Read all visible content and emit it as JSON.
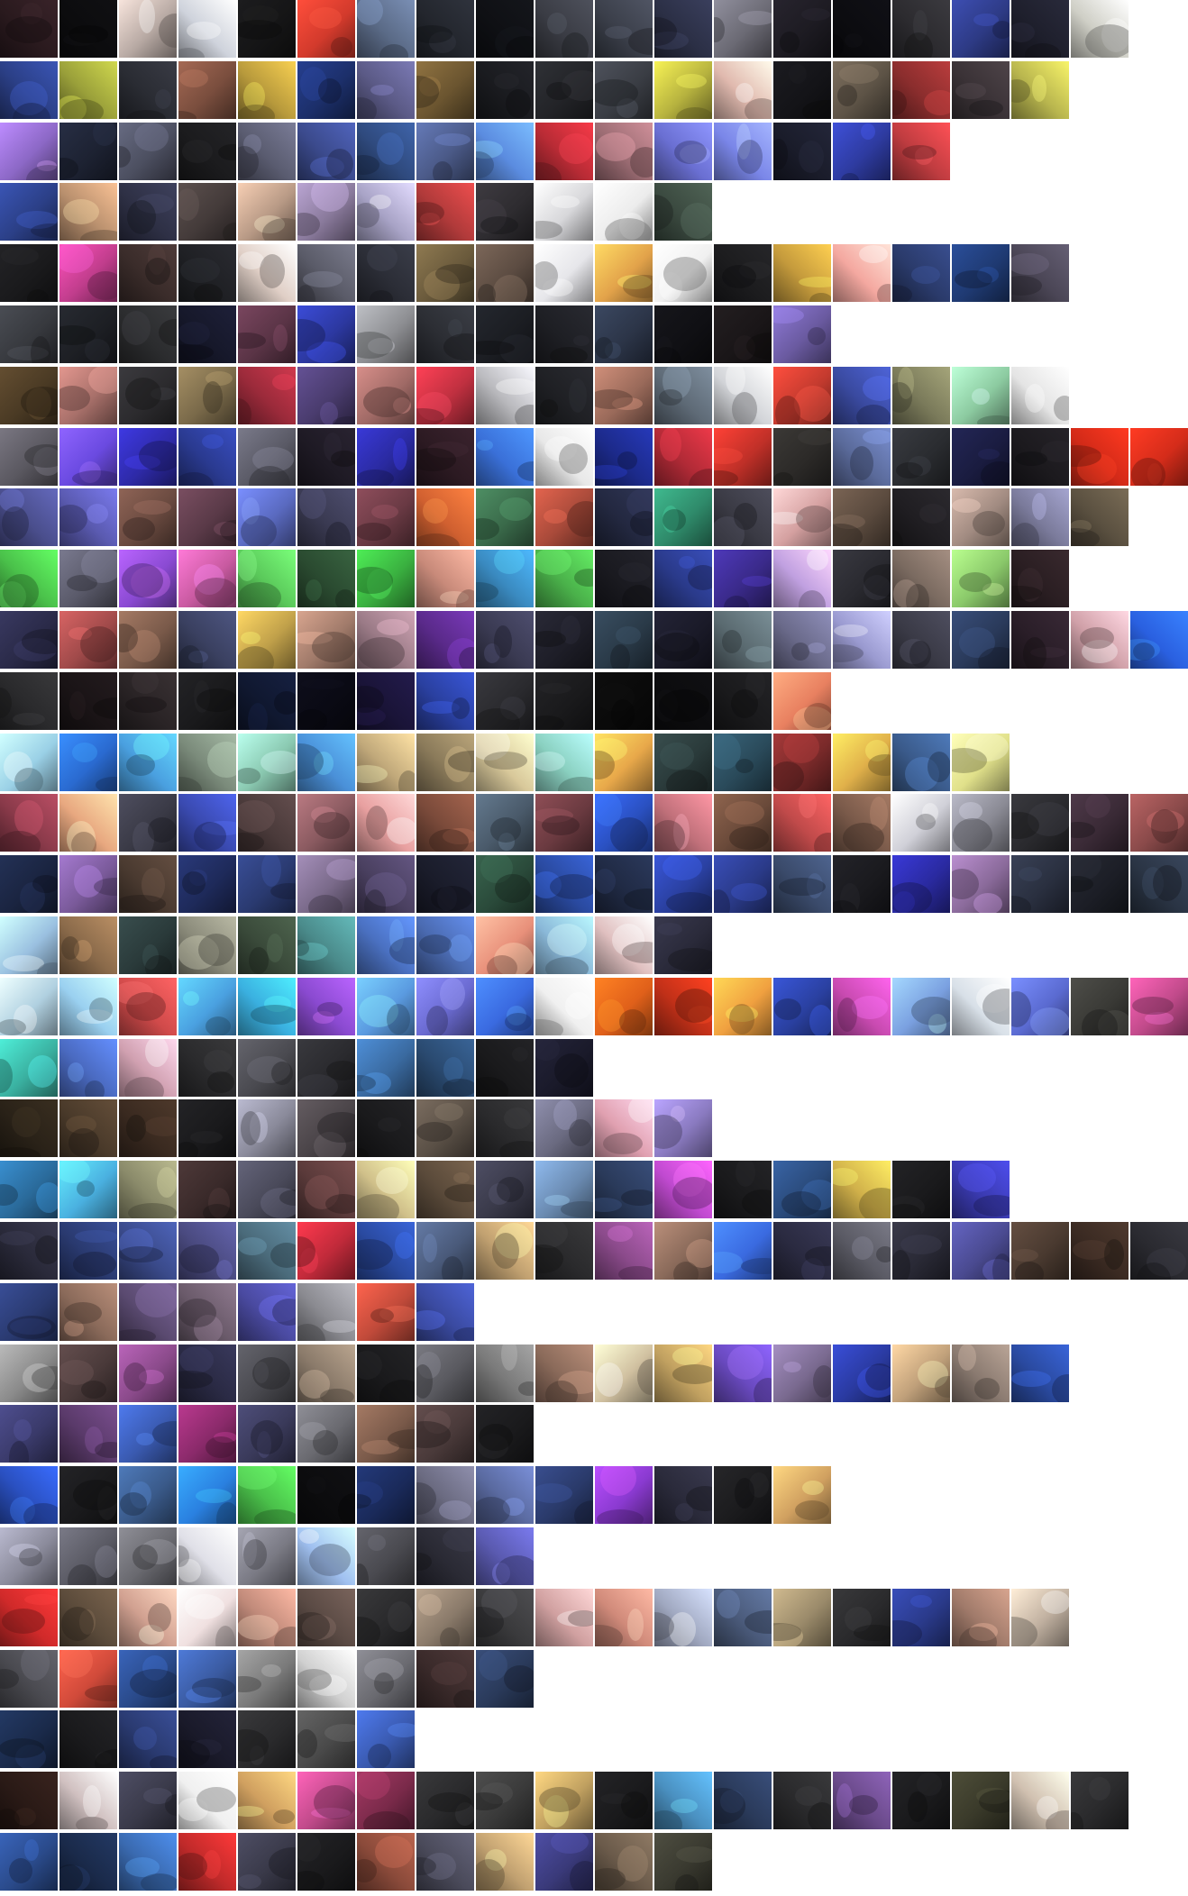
{
  "rows": [
    {
      "tiles": [
        "#2a1a1e",
        "#0c0c0e",
        "#b7a9a3",
        "#cfd3dc",
        "#151516",
        "#d23a2c",
        "#5a6a86",
        "#23262d",
        "#0f1014",
        "#3a3c44",
        "#3b3f4a",
        "#2b2f45",
        "#6b6a74",
        "#1d1b22",
        "#0c0c10",
        "#2c2b2f",
        "#2d3a84",
        "#1e1f2c",
        "#cfcfc6"
      ]
    },
    {
      "tiles": [
        "#2b3f86",
        "#9aa03a",
        "#2a2c33",
        "#7a4e3e",
        "#b89a3c",
        "#1c2f6a",
        "#5b5a86",
        "#6b5530",
        "#1a1b1f",
        "#232428",
        "#3a3d44",
        "#b7b33f",
        "#e0b9ae",
        "#141418",
        "#5d5346",
        "#8a2d2d",
        "#3a3236",
        "#b8b54e"
      ]
    },
    {
      "tiles": [
        "#8c68c6",
        "#1d2232",
        "#4c4f60",
        "#1b1b1d",
        "#5a5c70",
        "#3b4a8c",
        "#2f4a7e",
        "#4b5a88",
        "#5b8ce0",
        "#b82b35",
        "#9a6b72",
        "#6a6fd2",
        "#7a86e8",
        "#1a1c2a",
        "#2e3ba0",
        "#bf3c40"
      ]
    },
    {
      "tiles": [
        "#2b3f86",
        "#b9906e",
        "#2e3045",
        "#443b3a",
        "#b79985",
        "#8a7a9c",
        "#a8a3c6",
        "#b03a3a",
        "#2e2c30",
        "#d7d7da",
        "#ececec",
        "#3b4a40"
      ]
    },
    {
      "tiles": [
        "#1a1a1c",
        "#c03d8c",
        "#3a2c2a",
        "#1f2024",
        "#e0cfc6",
        "#5a5b68",
        "#2b2d36",
        "#6a5a3c",
        "#5c4c42",
        "#e6e6ea",
        "#e2a24a",
        "#f0f0f0",
        "#1c1c1e",
        "#c49a3c",
        "#f4a8a0",
        "#2a3a6a",
        "#1f3a72",
        "#4b4656"
      ]
    },
    {
      "tiles": [
        "#37393e",
        "#1d1f24",
        "#2b2c2e",
        "#16182a",
        "#5a3446",
        "#2c38a0",
        "#8d8e92",
        "#2c2e34",
        "#1b1d22",
        "#1e1f24",
        "#2c3548",
        "#101014",
        "#1a1618",
        "#6a5aa0"
      ]
    },
    {
      "tiles": [
        "#4a3a24",
        "#a8706a",
        "#2c2b2e",
        "#7a6a4a",
        "#9a2a3a",
        "#4a3c6e",
        "#a06a66",
        "#c03040",
        "#b8b8bc",
        "#1f2024",
        "#9a6a5a",
        "#5e6a76",
        "#d2d4d8",
        "#c23a2e",
        "#3a4aa0",
        "#7a7a5a",
        "#8ccaa0",
        "#e4e4e4"
      ]
    },
    {
      "tiles": [
        "#5a5860",
        "#6a4ae0",
        "#2e2aa8",
        "#2a3a90",
        "#5a5a66",
        "#1e1a24",
        "#2a2aa0",
        "#2c1a22",
        "#3a70d8",
        "#e8e8e8",
        "#1c2a8a",
        "#b02a36",
        "#c03028",
        "#2c2a28",
        "#5a6a9a",
        "#2a2c30",
        "#1a1c40",
        "#1c1a1e",
        "#d22a18",
        "#d42c1a"
      ]
    },
    {
      "tiles": [
        "#4a4e8c",
        "#5a5ab0",
        "#6a4a40",
        "#5a3a48",
        "#5a6ac0",
        "#3a3a52",
        "#6a3a44",
        "#d06030",
        "#3a6a4a",
        "#a84a3a",
        "#232840",
        "#2f8a6a",
        "#3a3a44",
        "#d4a0a0",
        "#5a4a3e",
        "#201e22",
        "#a08a80",
        "#7a7a9a",
        "#5a5040"
      ]
    },
    {
      "tiles": [
        "#4ac04a",
        "#5a5a6a",
        "#8a4ad2",
        "#c85aa0",
        "#5ac85a",
        "#2a4a30",
        "#3ab040",
        "#c88a7a",
        "#3a8ac0",
        "#4ab04a",
        "#1a1a20",
        "#2a3a8a",
        "#3a2a8a",
        "#c0a0e0",
        "#2a2a30",
        "#7a6a60",
        "#8ac86a",
        "#2a1e22"
      ]
    },
    {
      "tiles": [
        "#2a2a48",
        "#a04a4a",
        "#7a5a4a",
        "#3a4060",
        "#c0a04a",
        "#a07a6a",
        "#9a7a86",
        "#5a2a8a",
        "#3a3a52",
        "#1e1e28",
        "#2a3a48",
        "#1a1a28",
        "#5a6a70",
        "#6a6a8a",
        "#9a9ad0",
        "#3a3a46",
        "#2a3a5a",
        "#2a1e28",
        "#d0a0a8",
        "#2a60e0"
      ]
    },
    {
      "tiles": [
        "#2a2a2c",
        "#1a1416",
        "#2a2426",
        "#1a1a1c",
        "#101830",
        "#0a0a14",
        "#1a1438",
        "#2a40a0",
        "#2a2a2e",
        "#1a1a1c",
        "#0a0a0a",
        "#0c0c0e",
        "#1a1a1c",
        "#e88060"
      ]
    },
    {
      "tiles": [
        "#9ad0e6",
        "#2a6ad0",
        "#4aa0e0",
        "#7a8a7a",
        "#8ac8b0",
        "#4a90d8",
        "#c0a87a",
        "#8a7a5a",
        "#d8c89a",
        "#8ad0c0",
        "#e8a84a",
        "#2a3a3a",
        "#2a4a5a",
        "#7a2a2a",
        "#e0b04a",
        "#3a5a8a",
        "#e0e08a"
      ]
    },
    {
      "tiles": [
        "#8a3a4a",
        "#e8a880",
        "#3a3a46",
        "#3a4ab0",
        "#4a3a3a",
        "#8a5a60",
        "#e8a0a0",
        "#7a4a3a",
        "#4a5a6a",
        "#6a3a40",
        "#2a50c0",
        "#c0707a",
        "#6a4a3a",
        "#c04a4a",
        "#7a5a4a",
        "#d0d0d8",
        "#8a8a94",
        "#2a2a2e",
        "#3a2a36",
        "#8a4a4a"
      ]
    },
    {
      "tiles": [
        "#1a2440",
        "#7a5a9a",
        "#4a3a30",
        "#1e2a5a",
        "#2a3a70",
        "#7a6a8a",
        "#4a4060",
        "#1a1c2a",
        "#2a4a3a",
        "#2a4aa0",
        "#202a44",
        "#2a40a0",
        "#2a3a88",
        "#3a4a6a",
        "#1a1a1e",
        "#2a2aa0",
        "#8a6a9a",
        "#2a3040",
        "#1c1e26",
        "#2a3444"
      ]
    },
    {
      "tiles": [
        "#9ac0e0",
        "#8a6a4a",
        "#2a3a3a",
        "#8a8a7a",
        "#3a4a3a",
        "#4a8a8a",
        "#4a70c0",
        "#4a6ab0",
        "#e8907a",
        "#8ab8d8",
        "#e0c0c0",
        "#2a2a3a"
      ]
    },
    {
      "tiles": [
        "#b0d0e0",
        "#9ad0f0",
        "#d04a4a",
        "#4aa0e0",
        "#3ab0e0",
        "#8a4ad0",
        "#5a9ae0",
        "#6a6ad0",
        "#3a6ae0",
        "#f0f0f0",
        "#e0601a",
        "#c03018",
        "#f0a040",
        "#2a40a0",
        "#c84ab0",
        "#7aa0e0",
        "#d8e0e8",
        "#5a6ad0",
        "#3a3a36",
        "#c04a8a"
      ]
    },
    {
      "tiles": [
        "#3ab0a0",
        "#4a6ac0",
        "#d0a0b0",
        "#2a2a2c",
        "#4a4a50",
        "#2a2a2e",
        "#3a6aa0",
        "#2a4a70",
        "#1a1a1c",
        "#1a1a2a"
      ]
    },
    {
      "tiles": [
        "#2a2218",
        "#4a3a2a",
        "#3a2a20",
        "#1a1a1c",
        "#8a8a9a",
        "#4a4448",
        "#1a1a1c",
        "#5a5046",
        "#2a2a2c",
        "#6a6a80",
        "#e0a0b0",
        "#8a7ac0"
      ]
    },
    {
      "tiles": [
        "#2a6a9a",
        "#4ab0e0",
        "#8a8a6a",
        "#3a2a2a",
        "#4a4a5a",
        "#5a3a3a",
        "#d0c08a",
        "#5a4a3a",
        "#3a3a4a",
        "#6a8ab0",
        "#2a3a5a",
        "#c04ad0",
        "#1a1a1c",
        "#2a4a7a",
        "#d0b04a",
        "#1a1a1c",
        "#3a3ab0"
      ]
    },
    {
      "tiles": [
        "#2a2a3a",
        "#2a3a70",
        "#3a4a8a",
        "#4a4a80",
        "#4a6a7a",
        "#c02a3a",
        "#2a4aa0",
        "#4a5a7a",
        "#c0a070",
        "#2a2a2c",
        "#8a4a8a",
        "#8a6a5a",
        "#3a6ae0",
        "#2a2a40",
        "#5a5a64",
        "#2a2a36",
        "#4a4a90",
        "#4a3a30",
        "#3a2a22",
        "#2a2a30"
      ]
    },
    {
      "tiles": [
        "#2a3a70",
        "#8a6a5a",
        "#5a4a70",
        "#6a5a6a",
        "#4a4aa0",
        "#8a8a90",
        "#c04a3a",
        "#3a4aa0"
      ]
    },
    {
      "tiles": [
        "#8a8a8a",
        "#4a3a3a",
        "#8a4a8a",
        "#2a2a44",
        "#4a4a50",
        "#8a7a6a",
        "#1a1a1c",
        "#5a5a60",
        "#7a7a7a",
        "#8a6a5a",
        "#d0c0a0",
        "#c0a060",
        "#6a4ac0",
        "#7a6a90",
        "#2a3aa0",
        "#c0a07a",
        "#8a7a70",
        "#2a4aa0"
      ]
    },
    {
      "tiles": [
        "#3a3a6a",
        "#5a3a6a",
        "#3a5ab0",
        "#8a2a6a",
        "#3a3a5a",
        "#6a6a70",
        "#7a5a4a",
        "#4a3a3a",
        "#1a1a1c"
      ]
    },
    {
      "tiles": [
        "#2a50c0",
        "#1a1a1c",
        "#3a5a8a",
        "#2a80e0",
        "#4ac04a",
        "#0c0c0e",
        "#1a2a5a",
        "#6a6a80",
        "#5a6aa0",
        "#2a3a6a",
        "#8a3ad0",
        "#2a2a3a",
        "#1c1c1e",
        "#d0a060"
      ]
    },
    {
      "tiles": [
        "#8a8a9a",
        "#5a5a64",
        "#6a6a70",
        "#e0e0e8",
        "#7a7a84",
        "#a0c0f0",
        "#4a4a50",
        "#2a2a34",
        "#5a5ab0"
      ]
    },
    {
      "tiles": [
        "#d02a2a",
        "#5a4a3a",
        "#d0a090",
        "#f0e0e0",
        "#c08a7a",
        "#5a4a44",
        "#2a2a2c",
        "#8a7a6a",
        "#3a3a3c",
        "#d0a0a0",
        "#d08a7a",
        "#a0a8c0",
        "#4a5a7a",
        "#9a8a6a",
        "#2a2a2c",
        "#2a3a8a",
        "#a07a6a",
        "#c0b0a0"
      ]
    },
    {
      "tiles": [
        "#4a4a50",
        "#d04a3a",
        "#2a4a8a",
        "#3a5aa0",
        "#7a7a7a",
        "#d0d0d0",
        "#6a6a70",
        "#3a2a2a",
        "#2a3a5a"
      ]
    },
    {
      "tiles": [
        "#1a2a4a",
        "#1a1a1c",
        "#2a3a70",
        "#1a1a2a",
        "#2a2a2c",
        "#4a4a4a",
        "#3a5ab0"
      ]
    },
    {
      "tiles": [
        "#2a1a16",
        "#d0c0c0",
        "#3a3a4a",
        "#f0f0f0",
        "#d0a060",
        "#c04a8a",
        "#7a2a4a",
        "#2a2a2c",
        "#3a3a3a",
        "#c0a060",
        "#1a1a1c",
        "#4a90c0",
        "#2a3a5a",
        "#2a2a2c",
        "#6a4a8a",
        "#1a1a1c",
        "#3a3a2a",
        "#d0c0b0",
        "#2a2a2c"
      ]
    },
    {
      "tiles": [
        "#2a4a8a",
        "#1a2a4a",
        "#3a6ab0",
        "#c02a2a",
        "#3a3a4a",
        "#1a1a1c",
        "#8a4a3a",
        "#4a4a5a",
        "#c0a070",
        "#3a3a7a",
        "#6a5a4a",
        "#3a3a30"
      ]
    }
  ]
}
